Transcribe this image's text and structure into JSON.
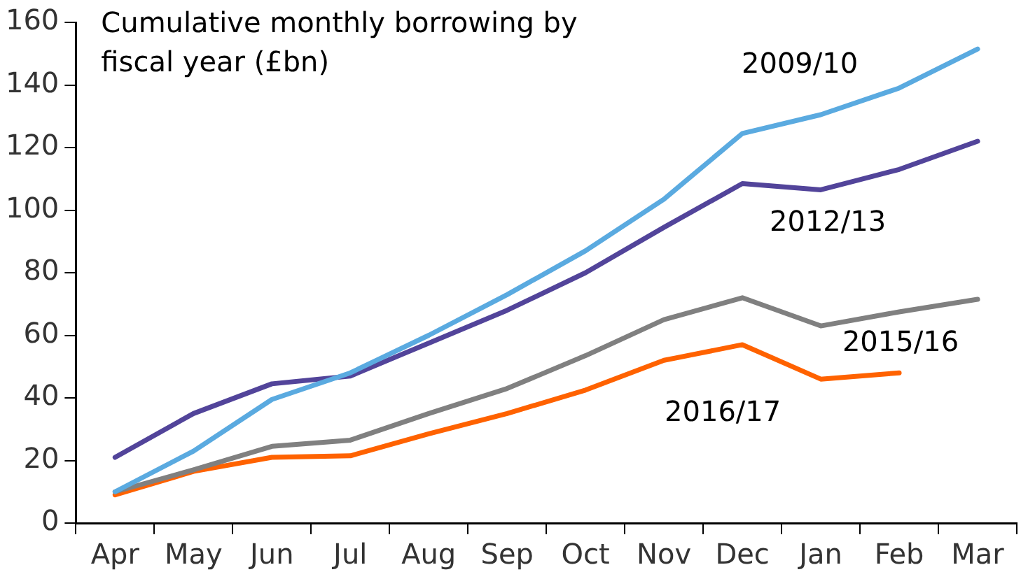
{
  "chart_data": {
    "type": "line",
    "title": "Cumulative monthly borrowing by\nfiscal year (£bn)",
    "categories": [
      "Apr",
      "May",
      "Jun",
      "Jul",
      "Aug",
      "Sep",
      "Oct",
      "Nov",
      "Dec",
      "Jan",
      "Feb",
      "Mar"
    ],
    "series": [
      {
        "name": "2009/10",
        "color": "#5aaae0",
        "values": [
          10,
          23,
          39.5,
          48,
          60,
          73,
          87,
          103.5,
          124.5,
          130.5,
          139,
          151.5
        ]
      },
      {
        "name": "2012/13",
        "color": "#52449a",
        "values": [
          21,
          35,
          44.5,
          47,
          57.5,
          68,
          80,
          94.5,
          108.5,
          106.5,
          113,
          122
        ]
      },
      {
        "name": "2015/16",
        "color": "#808080",
        "values": [
          10,
          17,
          24.5,
          26.5,
          35,
          43,
          53.5,
          65,
          72,
          63,
          67.5,
          71.5
        ]
      },
      {
        "name": "2016/17",
        "color": "#ff6200",
        "values": [
          9,
          16.5,
          21,
          21.5,
          28.5,
          35,
          42.5,
          52,
          57,
          46,
          48,
          null
        ]
      }
    ],
    "ylim": [
      0,
      160
    ],
    "yticks": [
      0,
      20,
      40,
      60,
      80,
      100,
      120,
      140,
      160
    ],
    "grid": false,
    "legend": false,
    "marker": "none",
    "line_style": "solid"
  }
}
